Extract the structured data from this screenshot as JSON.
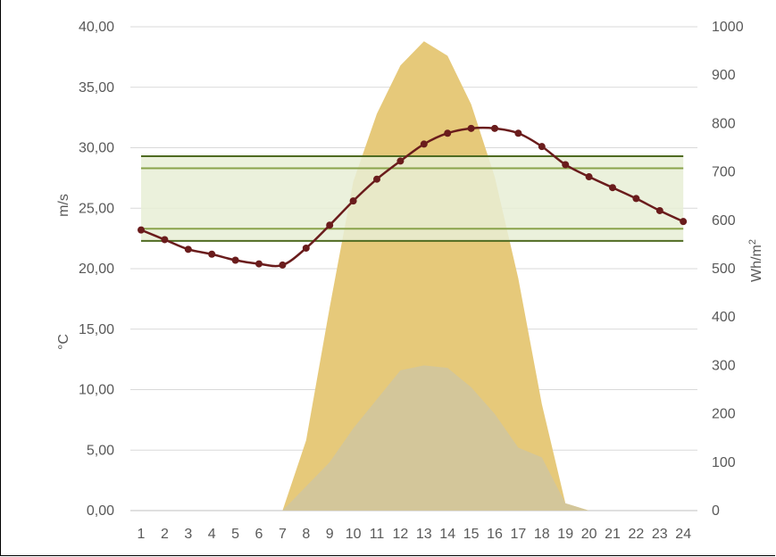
{
  "chart_data": {
    "type": "area",
    "x": [
      1,
      2,
      3,
      4,
      5,
      6,
      7,
      8,
      9,
      10,
      11,
      12,
      13,
      14,
      15,
      16,
      17,
      18,
      19,
      20,
      21,
      22,
      23,
      24
    ],
    "ylabel_left_top": "m/s",
    "ylabel_left_bottom": "°C",
    "ylabel_right_base": "Wh/m",
    "ylabel_right_exp": "2",
    "ylim_left": [
      0,
      40
    ],
    "ylim_right": [
      0,
      1000
    ],
    "y_ticks_left": [
      "0,00",
      "5,00",
      "10,00",
      "15,00",
      "20,00",
      "25,00",
      "30,00",
      "35,00",
      "40,00"
    ],
    "y_ticks_right": [
      "0",
      "100",
      "200",
      "300",
      "400",
      "500",
      "600",
      "700",
      "800",
      "900",
      "1000"
    ],
    "grid": true,
    "series": [
      {
        "axis": "right",
        "style": "area",
        "color": "#e6c97a",
        "values": [
          0,
          0,
          0,
          0,
          0,
          0,
          0,
          145,
          420,
          680,
          820,
          920,
          970,
          940,
          840,
          690,
          480,
          220,
          15,
          0,
          0,
          0,
          0,
          0
        ]
      },
      {
        "axis": "right",
        "style": "area",
        "color": "#d3c69a",
        "values": [
          0,
          0,
          0,
          0,
          0,
          0,
          0,
          50,
          100,
          170,
          230,
          290,
          300,
          295,
          255,
          200,
          130,
          110,
          15,
          0,
          0,
          0,
          0,
          0
        ]
      },
      {
        "axis": "left",
        "style": "line-markers",
        "color": "#6a1c1c",
        "values": [
          23.2,
          22.4,
          21.6,
          21.2,
          20.7,
          20.4,
          20.3,
          21.7,
          23.6,
          25.6,
          27.4,
          28.9,
          30.3,
          31.2,
          31.6,
          31.6,
          31.2,
          30.1,
          28.6,
          27.6,
          26.7,
          25.8,
          24.8,
          23.9
        ]
      }
    ],
    "bands": [
      {
        "axis": "left",
        "from": 22.3,
        "to": 29.3,
        "fill": "#e8efd6",
        "line_color": "#4f6b22"
      },
      {
        "axis": "left",
        "from": 23.3,
        "to": 28.3,
        "fill": "none",
        "line_color": "#8aa34b"
      }
    ]
  }
}
